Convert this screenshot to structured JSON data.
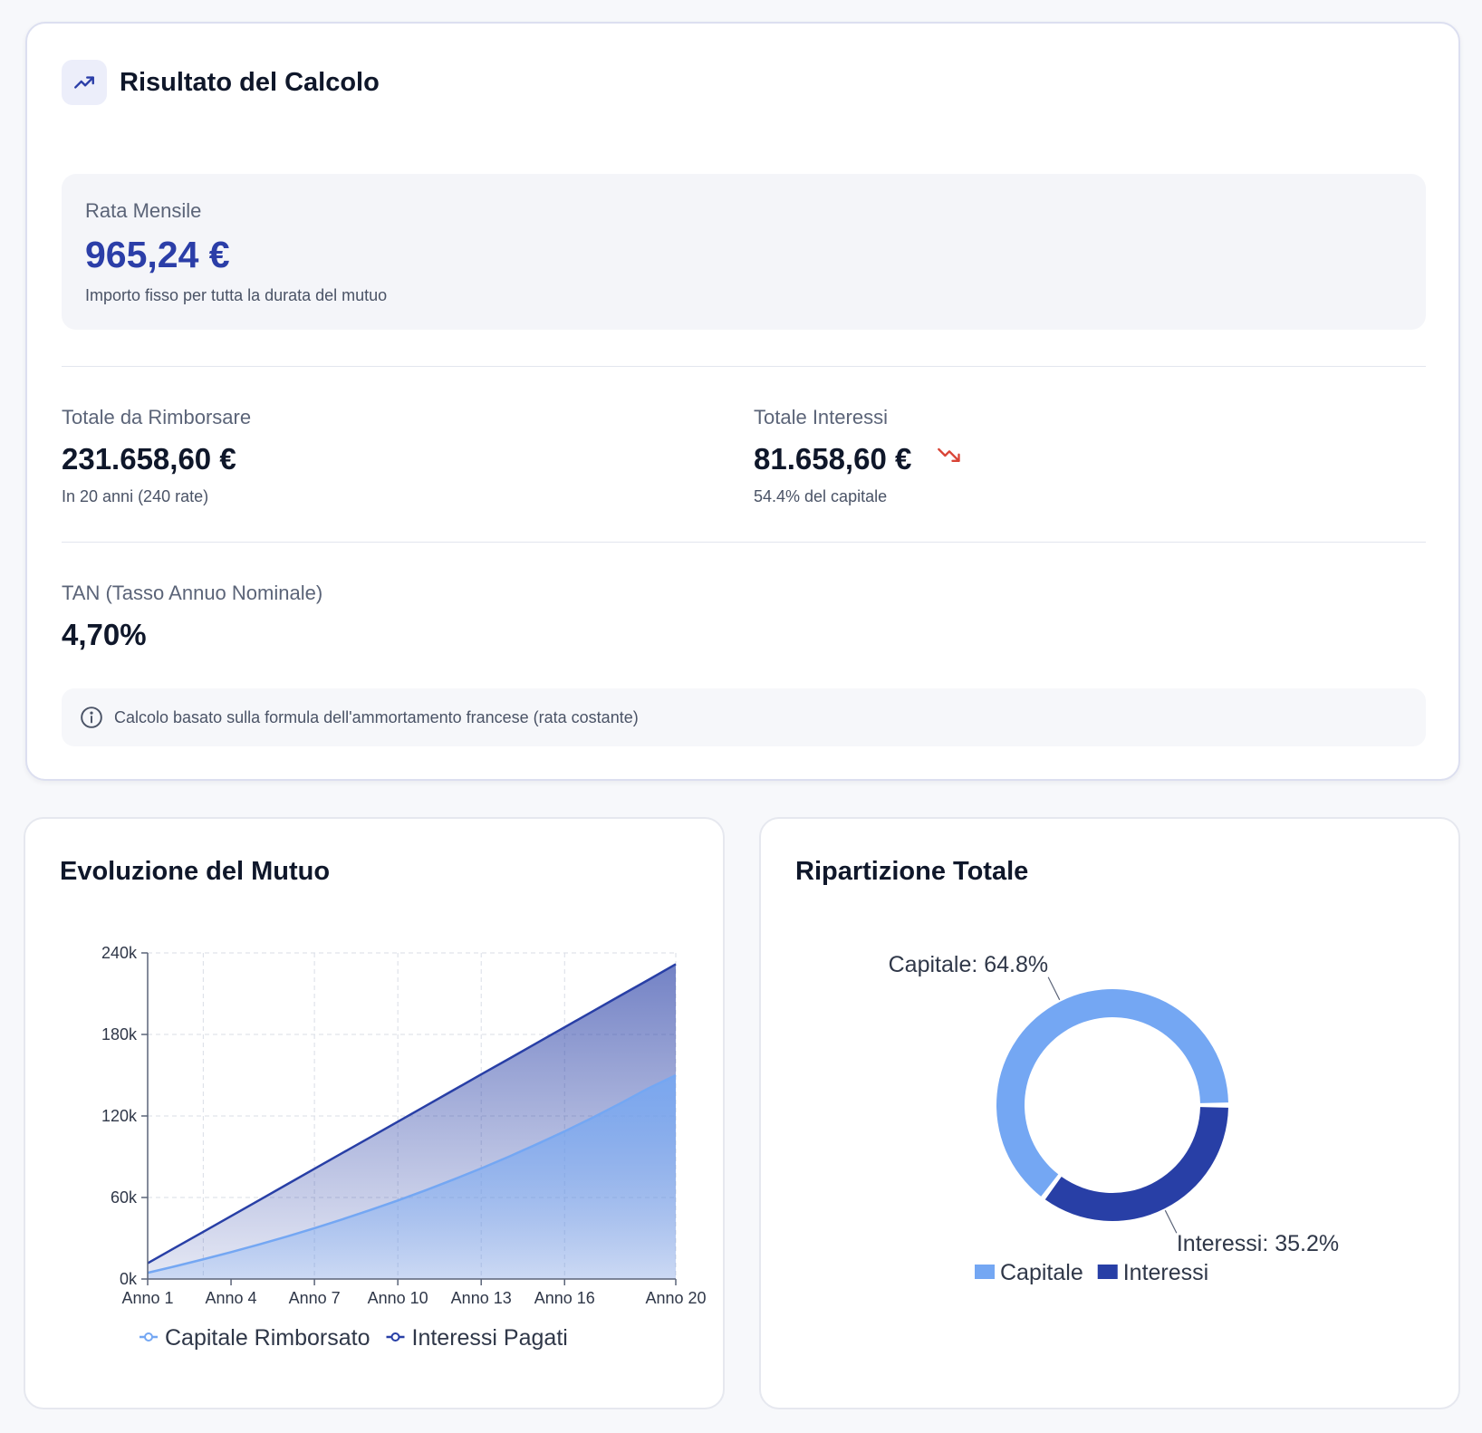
{
  "result": {
    "title": "Risultato del Calcolo",
    "header_icon": "trending-up-icon",
    "monthly": {
      "label": "Rata Mensile",
      "value": "965,24 €",
      "note": "Importo fisso per tutta la durata del mutuo"
    },
    "total_repay": {
      "label": "Totale da Rimborsare",
      "value": "231.658,60 €",
      "sub": "In 20 anni (240 rate)"
    },
    "total_interest": {
      "label": "Totale Interessi",
      "value": "81.658,60 €",
      "sub": "54.4% del capitale",
      "trend_icon": "trending-down-icon"
    },
    "tan": {
      "label": "TAN (Tasso Annuo Nominale)",
      "value": "4,70%"
    },
    "info": {
      "icon": "info-icon",
      "text": "Calcolo basato sulla formula dell'ammortamento francese (rata costante)"
    }
  },
  "evolution": {
    "title": "Evoluzione del Mutuo"
  },
  "breakdown": {
    "title": "Ripartizione Totale"
  },
  "colors": {
    "accent": "#2b3ea8",
    "capitale": "#74a7f3",
    "interessi": "#283fa6",
    "trend_down": "#d94436"
  },
  "chart_data": [
    {
      "type": "area",
      "x": [
        1,
        2,
        3,
        4,
        5,
        6,
        7,
        8,
        9,
        10,
        11,
        12,
        13,
        14,
        15,
        16,
        17,
        18,
        19,
        20
      ],
      "x_tick_labels": [
        "Anno 1",
        "Anno 4",
        "Anno 7",
        "Anno 10",
        "Anno 13",
        "Anno 16",
        "Anno 20"
      ],
      "x_tick_values": [
        1,
        4,
        7,
        10,
        13,
        16,
        20
      ],
      "ylim": [
        0,
        240000
      ],
      "y_ticks": [
        0,
        60000,
        120000,
        180000,
        240000
      ],
      "y_tick_labels": [
        "0k",
        "60k",
        "120k",
        "180k",
        "240k"
      ],
      "grid": true,
      "legend_position": "bottom",
      "series": [
        {
          "name": "Capitale Rimborsato",
          "color": "#74a7f3",
          "values": [
            4600,
            9400,
            14500,
            19800,
            25400,
            31200,
            37400,
            43900,
            50700,
            57800,
            65300,
            73200,
            81400,
            90100,
            99200,
            108700,
            118700,
            129200,
            140200,
            150000
          ]
        },
        {
          "name": "Interessi Pagati",
          "color": "#283fa6",
          "values": [
            11600,
            23200,
            34700,
            46300,
            57900,
            69500,
            81100,
            92700,
            104200,
            115800,
            127400,
            139000,
            150600,
            162100,
            173700,
            185300,
            196900,
            208500,
            220000,
            231700
          ]
        }
      ]
    },
    {
      "type": "pie",
      "categories": [
        "Capitale",
        "Interessi"
      ],
      "values": [
        64.8,
        35.2
      ],
      "labels": [
        "Capitale: 64.8%",
        "Interessi: 35.2%"
      ],
      "colors": [
        "#74a7f3",
        "#283fa6"
      ],
      "legend_position": "bottom"
    }
  ]
}
